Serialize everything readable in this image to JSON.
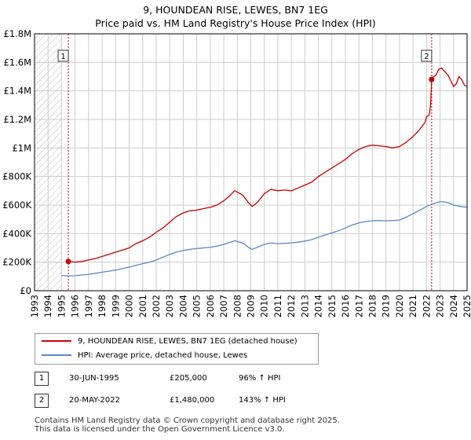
{
  "title": "9, HOUNDEAN RISE, LEWES, BN7 1EG",
  "subtitle": "Price paid vs. HM Land Registry's House Price Index (HPI)",
  "colors": {
    "property": "#cc0000",
    "hpi": "#5588cc",
    "marker": "#cc0000",
    "event_line": "#cc0000",
    "grid": "#cccccc",
    "hatch": "#bbbbbb"
  },
  "chart_data": {
    "type": "line",
    "title": "9, HOUNDEAN RISE, LEWES, BN7 1EG",
    "subtitle": "Price paid vs. HM Land Registry's House Price Index (HPI)",
    "xlabel": "",
    "ylabel": "",
    "xlim": [
      1993,
      2025
    ],
    "ylim": [
      0,
      1800000
    ],
    "y_ticks": [
      0,
      200000,
      400000,
      600000,
      800000,
      1000000,
      1200000,
      1400000,
      1600000,
      1800000
    ],
    "y_tick_labels": [
      "£0",
      "£200K",
      "£400K",
      "£600K",
      "£800K",
      "£1M",
      "£1.2M",
      "£1.4M",
      "£1.6M",
      "£1.8M"
    ],
    "x_ticks": [
      1993,
      1994,
      1995,
      1996,
      1997,
      1998,
      1999,
      2000,
      2001,
      2002,
      2003,
      2004,
      2005,
      2006,
      2007,
      2008,
      2009,
      2010,
      2011,
      2012,
      2013,
      2014,
      2015,
      2016,
      2017,
      2018,
      2019,
      2020,
      2021,
      2022,
      2023,
      2024,
      2025
    ],
    "grid": true,
    "hatched_before": 1995.0,
    "series": [
      {
        "name": "9, HOUNDEAN RISE, LEWES, BN7 1EG (detached house)",
        "color": "#cc0000",
        "points": [
          [
            1995.5,
            205000
          ],
          [
            1996.0,
            200000
          ],
          [
            1996.5,
            205000
          ],
          [
            1997.0,
            215000
          ],
          [
            1997.5,
            225000
          ],
          [
            1998.0,
            240000
          ],
          [
            1998.5,
            255000
          ],
          [
            1999.0,
            270000
          ],
          [
            1999.5,
            285000
          ],
          [
            2000.0,
            300000
          ],
          [
            2000.5,
            330000
          ],
          [
            2001.0,
            350000
          ],
          [
            2001.5,
            375000
          ],
          [
            2002.0,
            410000
          ],
          [
            2002.5,
            440000
          ],
          [
            2003.0,
            480000
          ],
          [
            2003.5,
            520000
          ],
          [
            2004.0,
            545000
          ],
          [
            2004.5,
            560000
          ],
          [
            2005.0,
            565000
          ],
          [
            2005.5,
            575000
          ],
          [
            2006.0,
            585000
          ],
          [
            2006.5,
            600000
          ],
          [
            2007.0,
            630000
          ],
          [
            2007.5,
            670000
          ],
          [
            2007.8,
            700000
          ],
          [
            2008.0,
            690000
          ],
          [
            2008.4,
            670000
          ],
          [
            2008.8,
            620000
          ],
          [
            2009.1,
            590000
          ],
          [
            2009.5,
            620000
          ],
          [
            2010.0,
            680000
          ],
          [
            2010.5,
            710000
          ],
          [
            2011.0,
            700000
          ],
          [
            2011.5,
            705000
          ],
          [
            2012.0,
            700000
          ],
          [
            2012.5,
            720000
          ],
          [
            2013.0,
            740000
          ],
          [
            2013.5,
            760000
          ],
          [
            2014.0,
            800000
          ],
          [
            2014.5,
            830000
          ],
          [
            2015.0,
            860000
          ],
          [
            2015.5,
            890000
          ],
          [
            2016.0,
            920000
          ],
          [
            2016.5,
            960000
          ],
          [
            2017.0,
            990000
          ],
          [
            2017.5,
            1010000
          ],
          [
            2018.0,
            1020000
          ],
          [
            2018.5,
            1015000
          ],
          [
            2019.0,
            1010000
          ],
          [
            2019.5,
            1000000
          ],
          [
            2020.0,
            1010000
          ],
          [
            2020.5,
            1040000
          ],
          [
            2021.0,
            1080000
          ],
          [
            2021.5,
            1130000
          ],
          [
            2021.9,
            1180000
          ],
          [
            2022.0,
            1220000
          ],
          [
            2022.2,
            1230000
          ],
          [
            2022.3,
            1300000
          ],
          [
            2022.38,
            1480000
          ],
          [
            2022.5,
            1500000
          ],
          [
            2022.7,
            1510000
          ],
          [
            2022.9,
            1550000
          ],
          [
            2023.1,
            1560000
          ],
          [
            2023.3,
            1540000
          ],
          [
            2023.6,
            1510000
          ],
          [
            2023.8,
            1470000
          ],
          [
            2024.0,
            1430000
          ],
          [
            2024.2,
            1450000
          ],
          [
            2024.4,
            1500000
          ],
          [
            2024.6,
            1480000
          ],
          [
            2024.8,
            1440000
          ],
          [
            2025.0,
            1430000
          ]
        ]
      },
      {
        "name": "HPI: Average price, detached house, Lewes",
        "color": "#5588cc",
        "points": [
          [
            1995.0,
            105000
          ],
          [
            1995.5,
            104000
          ],
          [
            1996.0,
            105000
          ],
          [
            1996.5,
            110000
          ],
          [
            1997.0,
            115000
          ],
          [
            1997.5,
            122000
          ],
          [
            1998.0,
            130000
          ],
          [
            1998.5,
            137000
          ],
          [
            1999.0,
            145000
          ],
          [
            1999.5,
            155000
          ],
          [
            2000.0,
            165000
          ],
          [
            2000.5,
            177000
          ],
          [
            2001.0,
            190000
          ],
          [
            2001.5,
            200000
          ],
          [
            2002.0,
            215000
          ],
          [
            2002.5,
            235000
          ],
          [
            2003.0,
            255000
          ],
          [
            2003.5,
            270000
          ],
          [
            2004.0,
            282000
          ],
          [
            2004.5,
            290000
          ],
          [
            2005.0,
            295000
          ],
          [
            2005.5,
            300000
          ],
          [
            2006.0,
            305000
          ],
          [
            2006.5,
            312000
          ],
          [
            2007.0,
            325000
          ],
          [
            2007.5,
            340000
          ],
          [
            2007.8,
            350000
          ],
          [
            2008.0,
            345000
          ],
          [
            2008.5,
            330000
          ],
          [
            2008.8,
            305000
          ],
          [
            2009.1,
            290000
          ],
          [
            2009.5,
            305000
          ],
          [
            2010.0,
            325000
          ],
          [
            2010.5,
            335000
          ],
          [
            2011.0,
            330000
          ],
          [
            2011.5,
            332000
          ],
          [
            2012.0,
            335000
          ],
          [
            2012.5,
            340000
          ],
          [
            2013.0,
            348000
          ],
          [
            2013.5,
            358000
          ],
          [
            2014.0,
            375000
          ],
          [
            2014.5,
            390000
          ],
          [
            2015.0,
            405000
          ],
          [
            2015.5,
            420000
          ],
          [
            2016.0,
            440000
          ],
          [
            2016.5,
            460000
          ],
          [
            2017.0,
            475000
          ],
          [
            2017.5,
            485000
          ],
          [
            2018.0,
            490000
          ],
          [
            2018.5,
            492000
          ],
          [
            2019.0,
            490000
          ],
          [
            2019.5,
            492000
          ],
          [
            2020.0,
            495000
          ],
          [
            2020.5,
            515000
          ],
          [
            2021.0,
            540000
          ],
          [
            2021.5,
            565000
          ],
          [
            2022.0,
            590000
          ],
          [
            2022.5,
            610000
          ],
          [
            2023.0,
            625000
          ],
          [
            2023.5,
            620000
          ],
          [
            2024.0,
            600000
          ],
          [
            2024.5,
            590000
          ],
          [
            2025.0,
            585000
          ]
        ]
      }
    ],
    "annotations": [
      {
        "label": "1",
        "x": 1995.5,
        "y": 205000
      },
      {
        "label": "2",
        "x": 2022.38,
        "y": 1480000
      }
    ]
  },
  "legend": {
    "items": [
      {
        "label": "9, HOUNDEAN RISE, LEWES, BN7 1EG (detached house)",
        "color": "#cc0000"
      },
      {
        "label": "HPI: Average price, detached house, Lewes",
        "color": "#5588cc"
      }
    ]
  },
  "transactions": [
    {
      "num": "1",
      "date": "30-JUN-1995",
      "price": "£205,000",
      "hpi": "96% ↑ HPI"
    },
    {
      "num": "2",
      "date": "20-MAY-2022",
      "price": "£1,480,000",
      "hpi": "143% ↑ HPI"
    }
  ],
  "footer": {
    "line1": "Contains HM Land Registry data © Crown copyright and database right 2025.",
    "line2": "This data is licensed under the Open Government Licence v3.0."
  }
}
